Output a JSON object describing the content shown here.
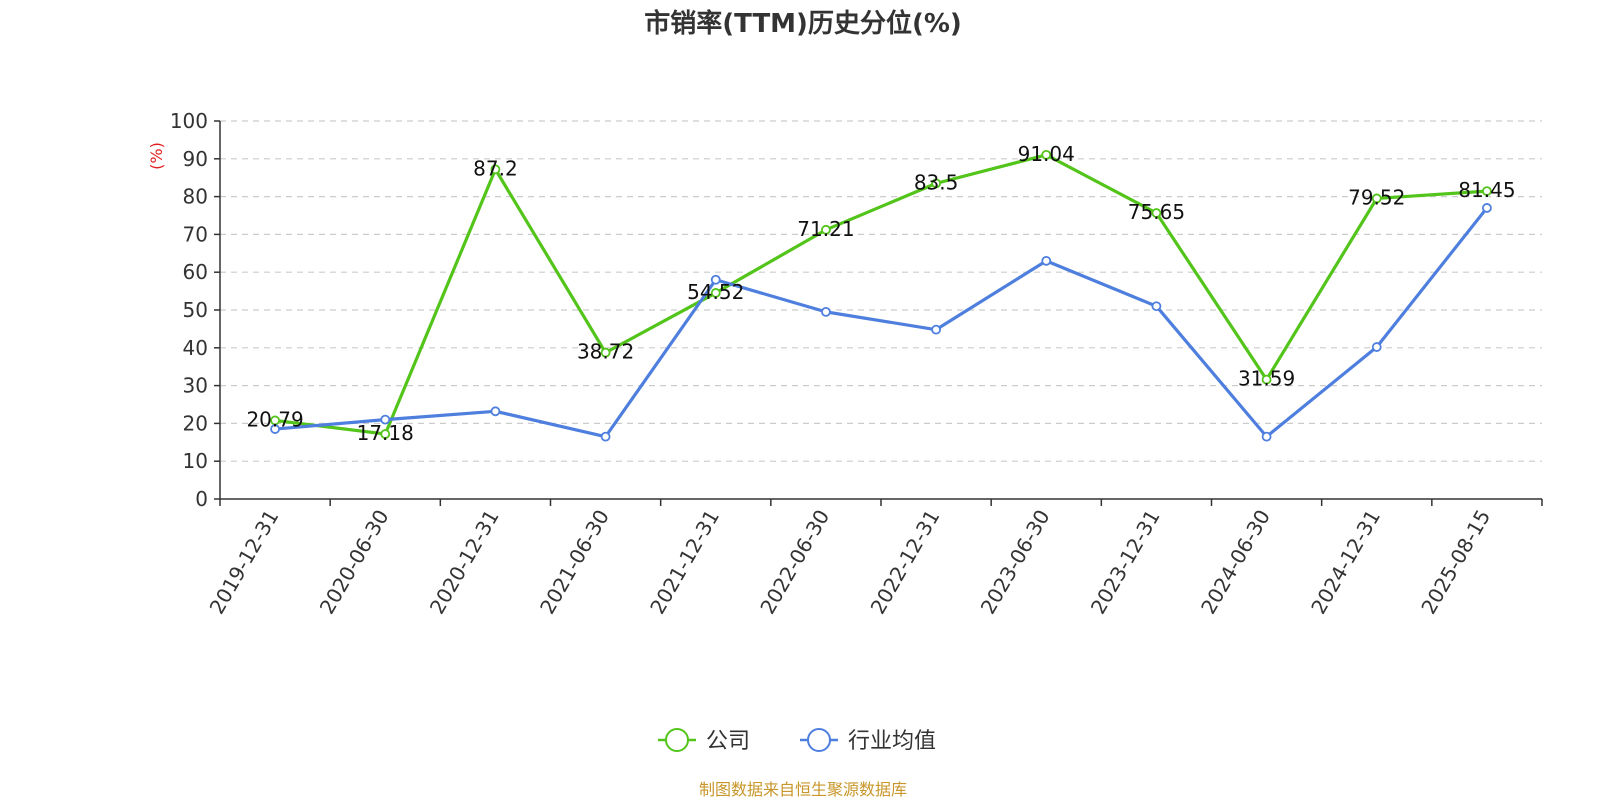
{
  "chart_data": {
    "type": "line",
    "title": "市销率(TTM)历史分位(%)",
    "ylabel": "(%)",
    "xlabel": "",
    "ylim": [
      0,
      100
    ],
    "yticks": [
      0,
      10,
      20,
      30,
      40,
      50,
      60,
      70,
      80,
      90,
      100
    ],
    "grid": true,
    "legend_position": "bottom-center",
    "categories": [
      "2019-12-31",
      "2020-06-30",
      "2020-12-31",
      "2021-06-30",
      "2021-12-31",
      "2022-06-30",
      "2022-12-31",
      "2023-06-30",
      "2023-12-31",
      "2024-06-30",
      "2024-12-31",
      "2025-08-15"
    ],
    "series": [
      {
        "name": "公司",
        "color": "#52c41a",
        "values": [
          20.79,
          17.18,
          87.2,
          38.72,
          54.52,
          71.21,
          83.5,
          91.04,
          75.65,
          31.59,
          79.52,
          81.45
        ],
        "labels": [
          "20.79",
          "17.18",
          "87.2",
          "38.72",
          "54.52",
          "71.21",
          "83.5",
          "91.04",
          "75.65",
          "31.59",
          "79.52",
          "81.45"
        ]
      },
      {
        "name": "行业均值",
        "color": "#4e7fde",
        "values": [
          18.5,
          21.0,
          23.2,
          16.5,
          58.0,
          49.5,
          44.8,
          63.0,
          51.0,
          16.5,
          40.2,
          77.0
        ]
      }
    ],
    "ylabel_color": "#e02020"
  },
  "footer": {
    "source": "制图数据来自恒生聚源数据库",
    "color": "#c8962a"
  }
}
